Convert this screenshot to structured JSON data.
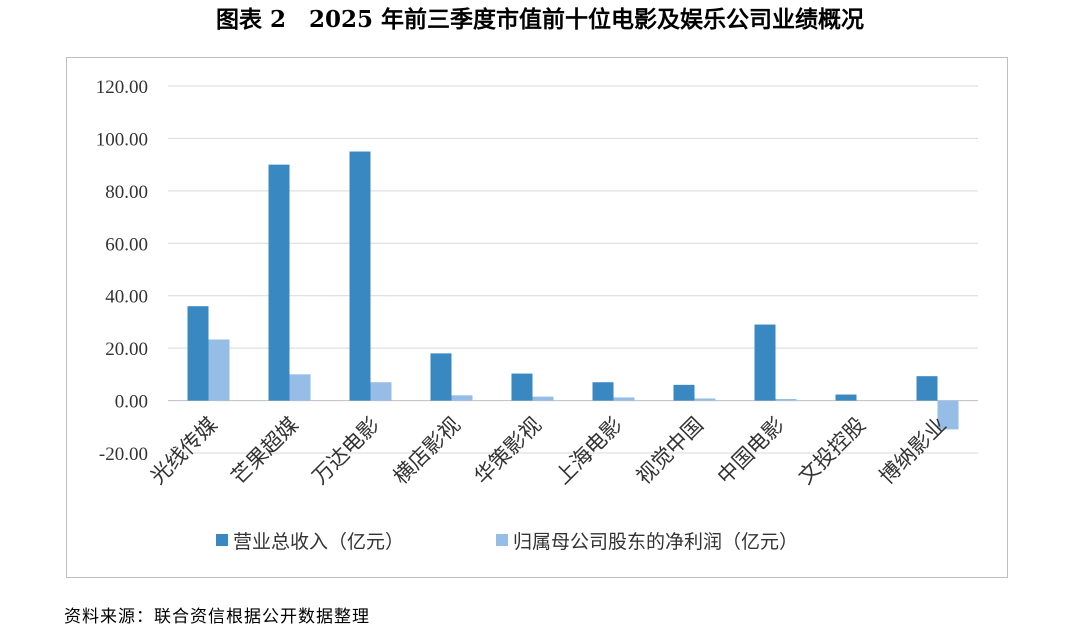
{
  "title": "图表 2　2025 年前三季度市值前十位电影及娱乐公司业绩概况",
  "source_note": "资料来源：联合资信根据公开数据整理",
  "chart_data": {
    "type": "bar",
    "title": "",
    "xlabel": "",
    "ylabel": "",
    "ylim": [
      -20,
      120
    ],
    "yticks": [
      "120.00",
      "100.00",
      "80.00",
      "60.00",
      "40.00",
      "20.00",
      "0.00",
      "-20.00"
    ],
    "grid": true,
    "legend_position": "bottom",
    "categories": [
      "光线传媒",
      "芒果超媒",
      "万达电影",
      "横店影视",
      "华策影视",
      "上海电影",
      "视觉中国",
      "中国电影",
      "文投控股",
      "博纳影业"
    ],
    "series": [
      {
        "name": "营业总收入（亿元）",
        "color": "#3a88c2",
        "values": [
          36,
          90,
          95,
          18,
          10.3,
          7,
          6,
          29,
          2.3,
          9.3
        ]
      },
      {
        "name": "归属母公司股东的净利润（亿元）",
        "color": "#95bde6",
        "values": [
          23.3,
          10,
          7,
          2,
          1.5,
          1.2,
          0.8,
          0.6,
          0,
          -11
        ]
      }
    ]
  }
}
